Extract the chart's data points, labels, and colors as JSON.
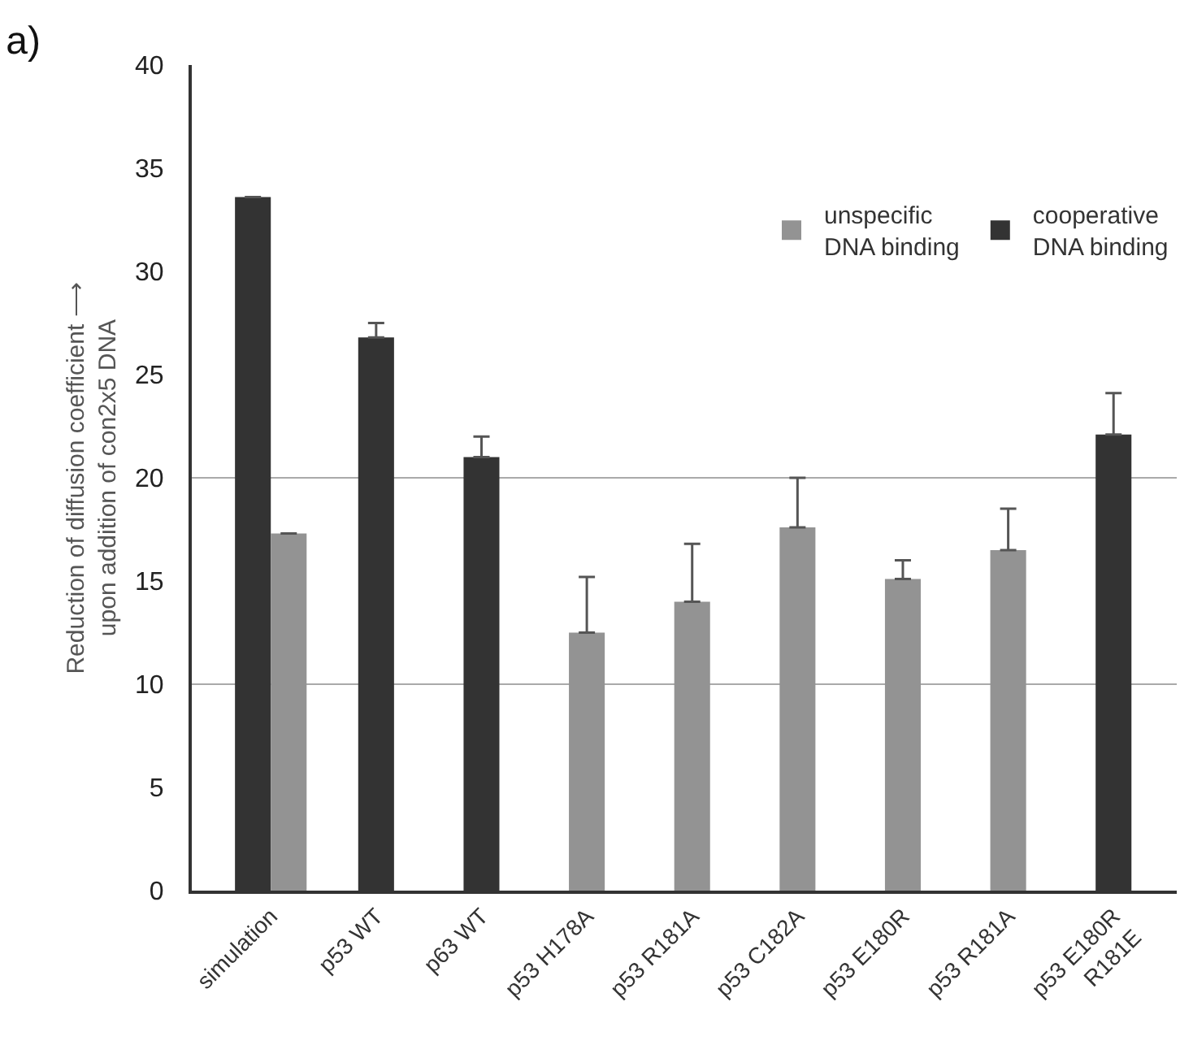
{
  "chart_data": {
    "type": "bar",
    "title": "a)",
    "ylabel": "Reduction of diffusion coefficient ⟶\nupon addition of con2x5 DNA",
    "categories": [
      "simulation",
      "p53 WT",
      "p63 WT",
      "p53 H178A",
      "p53 R181A",
      "p53 C182A",
      "p53 E180R",
      "p53 R181A",
      "p53 E180R\nR181E"
    ],
    "series": [
      {
        "name": "cooperative\nDNA binding",
        "color": "#333333",
        "values": [
          33.6,
          26.8,
          21.0,
          null,
          null,
          null,
          null,
          null,
          22.1
        ],
        "errors": [
          null,
          [
            26.8,
            27.5
          ],
          [
            21.0,
            22.0
          ],
          null,
          null,
          null,
          null,
          null,
          [
            22.1,
            24.1
          ]
        ]
      },
      {
        "name": "unspecific\nDNA binding",
        "color": "#939393",
        "values": [
          17.3,
          null,
          null,
          12.5,
          14.0,
          17.6,
          15.1,
          16.5,
          null
        ],
        "errors": [
          null,
          null,
          null,
          [
            12.5,
            15.2
          ],
          [
            14.0,
            16.8
          ],
          [
            17.6,
            20.0
          ],
          [
            15.1,
            16.0
          ],
          [
            16.5,
            18.5
          ],
          null
        ]
      }
    ],
    "ylim": [
      0,
      40
    ],
    "yticks": [
      0,
      5,
      10,
      15,
      20,
      25,
      30,
      35,
      40
    ],
    "grid": false,
    "legend": "top right",
    "ref_lines": [
      {
        "axis": "y",
        "value": 10,
        "color": "#aaaaaa"
      },
      {
        "axis": "y",
        "value": 20,
        "color": "#aaaaaa"
      }
    ]
  }
}
